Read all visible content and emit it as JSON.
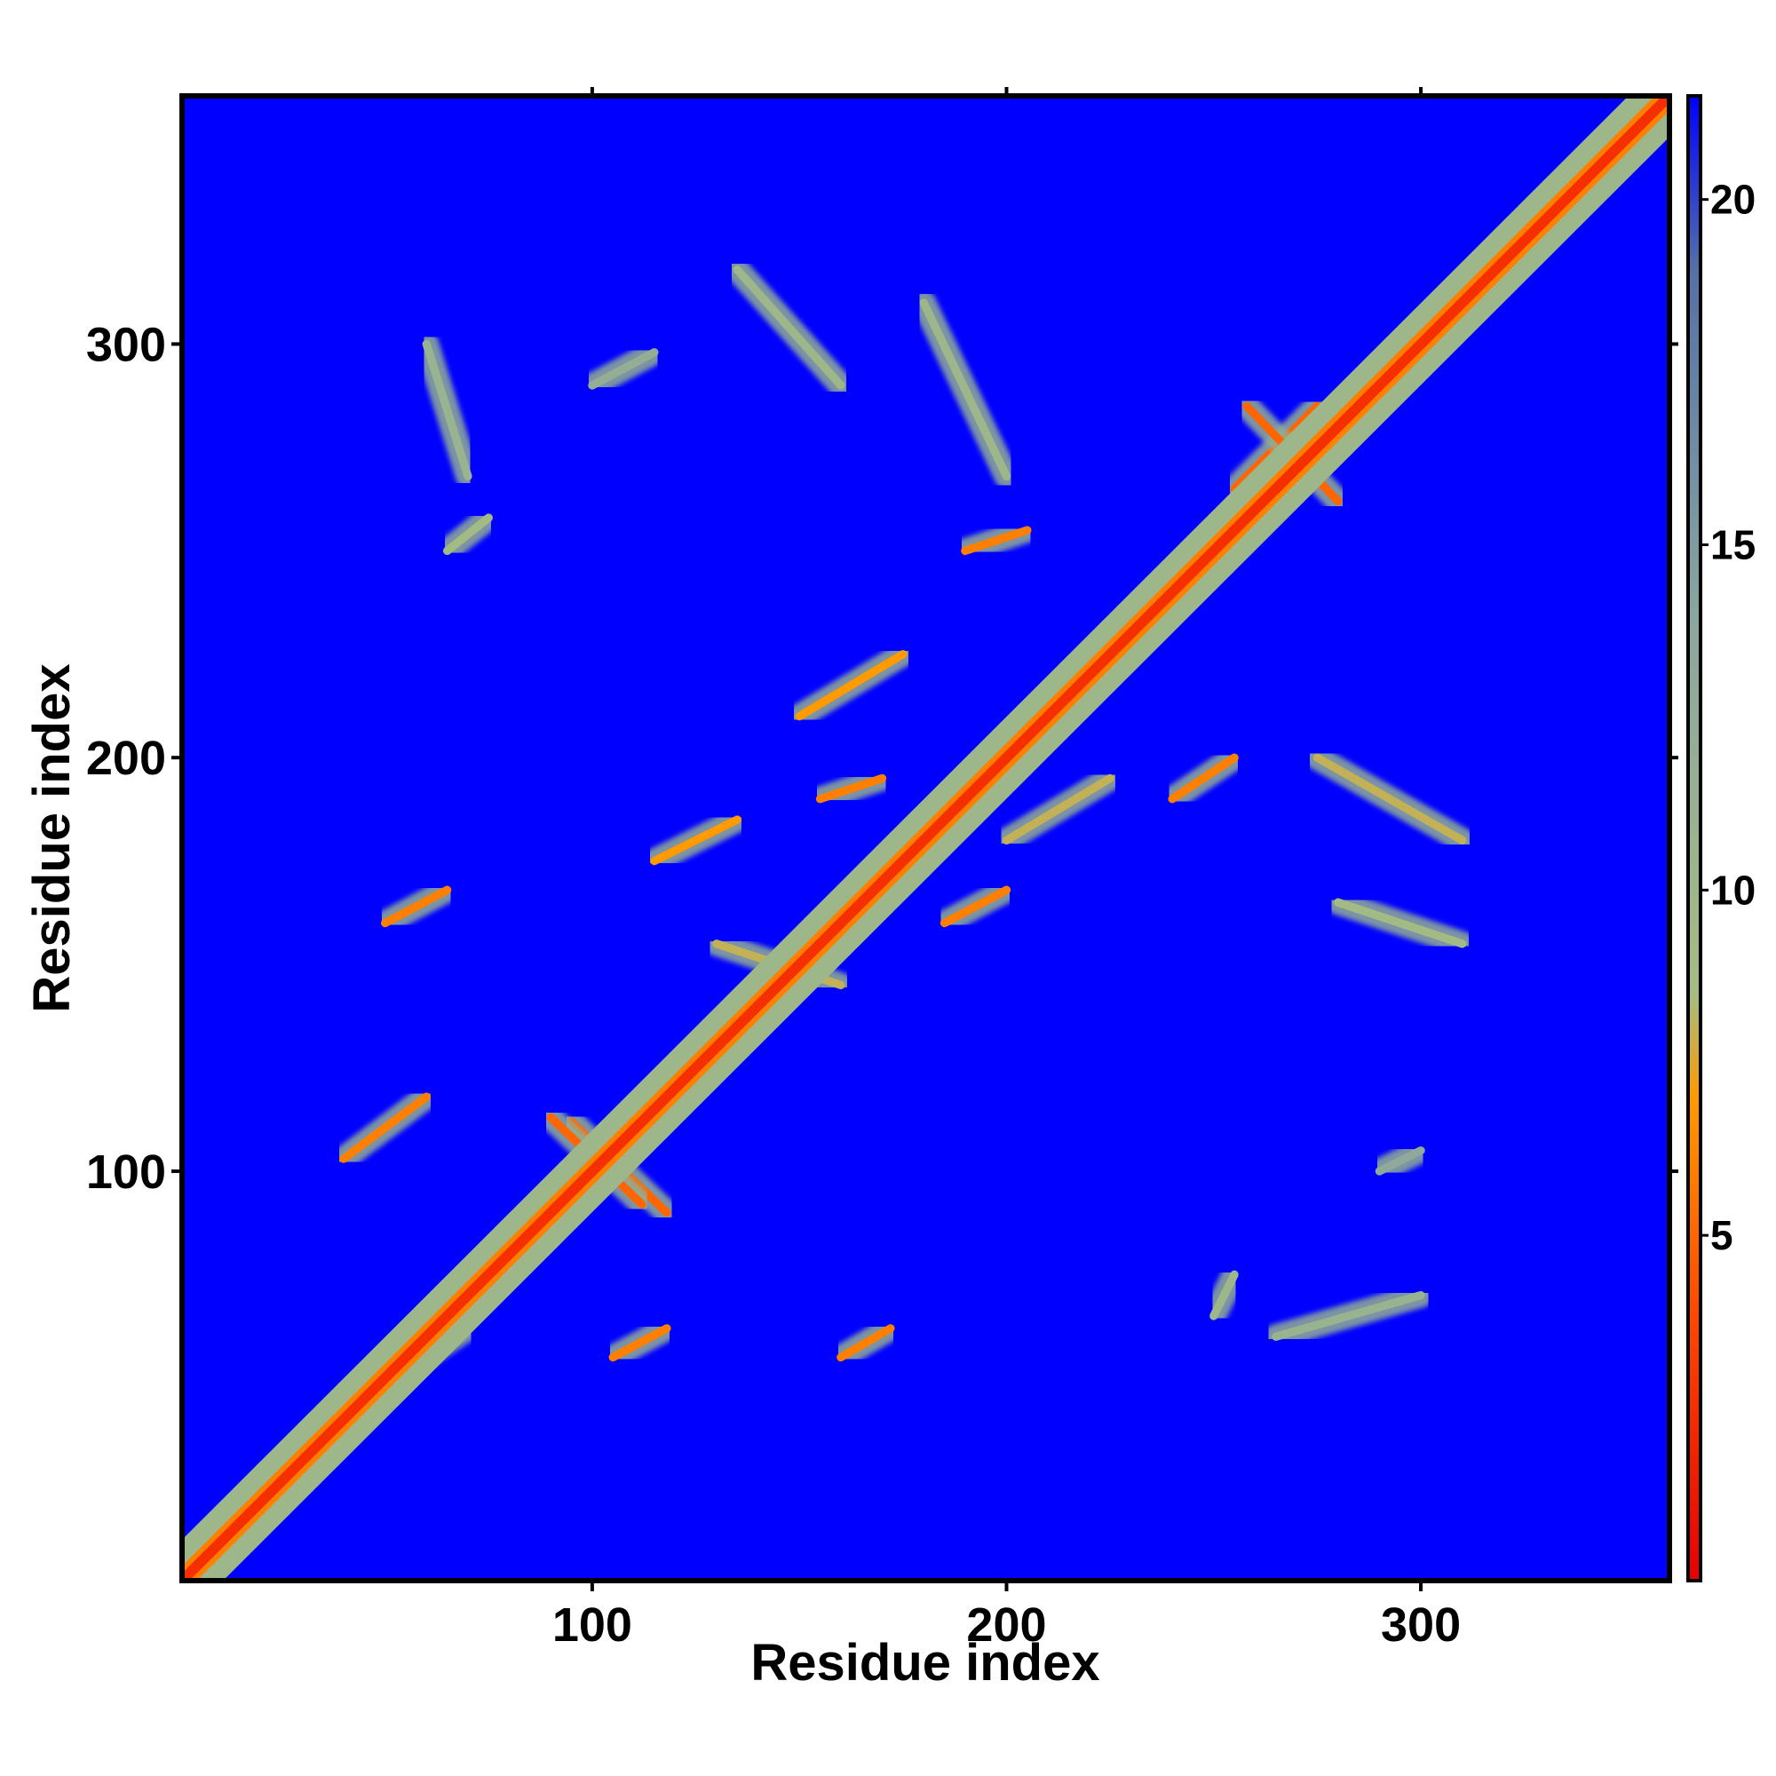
{
  "chart_data": {
    "type": "heatmap",
    "title": "",
    "xlabel": "Residue index",
    "ylabel": "Residue index",
    "xlim": [
      1,
      360
    ],
    "ylim": [
      1,
      360
    ],
    "xticks": [
      100,
      200,
      300
    ],
    "xtick_labels": [
      "100",
      "200",
      "300"
    ],
    "yticks": [
      100,
      200,
      300
    ],
    "ytick_labels": [
      "100",
      "200",
      "300"
    ],
    "colorbar": {
      "range": [
        0,
        21.5
      ],
      "ticks": [
        5,
        10,
        15,
        20
      ],
      "tick_labels": [
        "5",
        "10",
        "15",
        "20"
      ],
      "colors": [
        "#e60000",
        "#ff4b00",
        "#ff9a00",
        "#a4bd82",
        "#8aa6a0",
        "#5470a8",
        "#0000ff"
      ],
      "color_stops": [
        0,
        4,
        7,
        8.5,
        14,
        19,
        21.5
      ]
    },
    "background_value": 21.5,
    "diagonal_band": {
      "from": 1,
      "to": 360,
      "core_value": 2.5,
      "half_width_residues": 7
    },
    "contact_segments": [
      {
        "from": [
          55,
          52
        ],
        "to": [
          70,
          62
        ],
        "value": 5
      },
      {
        "from": [
          95,
          112
        ],
        "to": [
          118,
          90
        ],
        "value": 5
      },
      {
        "from": [
          90,
          113
        ],
        "to": [
          112,
          92
        ],
        "value": 5
      },
      {
        "from": [
          40,
          103
        ],
        "to": [
          60,
          118
        ],
        "value": 6
      },
      {
        "from": [
          50,
          160
        ],
        "to": [
          65,
          168
        ],
        "value": 6
      },
      {
        "from": [
          105,
          55
        ],
        "to": [
          118,
          62
        ],
        "value": 6
      },
      {
        "from": [
          160,
          55
        ],
        "to": [
          172,
          62
        ],
        "value": 6
      },
      {
        "from": [
          155,
          190
        ],
        "to": [
          170,
          195
        ],
        "value": 6
      },
      {
        "from": [
          185,
          160
        ],
        "to": [
          200,
          168
        ],
        "value": 6
      },
      {
        "from": [
          190,
          250
        ],
        "to": [
          205,
          255
        ],
        "value": 6
      },
      {
        "from": [
          240,
          190
        ],
        "to": [
          255,
          200
        ],
        "value": 6
      },
      {
        "from": [
          255,
          265
        ],
        "to": [
          275,
          285
        ],
        "value": 5
      },
      {
        "from": [
          258,
          285
        ],
        "to": [
          280,
          262
        ],
        "value": 5
      },
      {
        "from": [
          115,
          175
        ],
        "to": [
          135,
          185
        ],
        "value": 7
      },
      {
        "from": [
          150,
          210
        ],
        "to": [
          175,
          225
        ],
        "value": 7
      },
      {
        "from": [
          130,
          155
        ],
        "to": [
          160,
          145
        ],
        "value": 8
      },
      {
        "from": [
          200,
          180
        ],
        "to": [
          225,
          195
        ],
        "value": 8
      },
      {
        "from": [
          275,
          200
        ],
        "to": [
          310,
          180
        ],
        "value": 8
      },
      {
        "from": [
          280,
          165
        ],
        "to": [
          310,
          155
        ],
        "value": 9
      },
      {
        "from": [
          65,
          250
        ],
        "to": [
          75,
          258
        ],
        "value": 9
      },
      {
        "from": [
          135,
          318
        ],
        "to": [
          160,
          290
        ],
        "value": 10
      },
      {
        "from": [
          180,
          310
        ],
        "to": [
          200,
          268
        ],
        "value": 10
      },
      {
        "from": [
          60,
          300
        ],
        "to": [
          70,
          268
        ],
        "value": 11
      },
      {
        "from": [
          100,
          290
        ],
        "to": [
          115,
          298
        ],
        "value": 12
      },
      {
        "from": [
          250,
          65
        ],
        "to": [
          255,
          75
        ],
        "value": 10
      },
      {
        "from": [
          265,
          60
        ],
        "to": [
          300,
          70
        ],
        "value": 11
      },
      {
        "from": [
          290,
          100
        ],
        "to": [
          300,
          105
        ],
        "value": 13
      }
    ]
  }
}
